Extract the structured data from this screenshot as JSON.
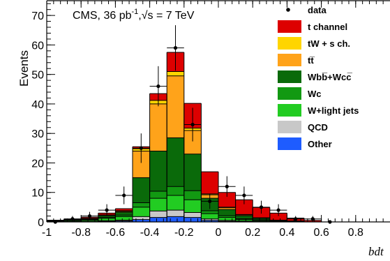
{
  "chart_data": {
    "type": "bar",
    "stacked": true,
    "title": "",
    "annotation": {
      "main": "CMS, 36 pb",
      "sup": "-1",
      "sep": ",",
      "sqrt_label": "√s = 7 TeV"
    },
    "ylabel": "Events",
    "xlabel": "bdt",
    "xlim": [
      -1,
      1
    ],
    "ylim": [
      0,
      75
    ],
    "x_ticks": [
      -1,
      -0.8,
      -0.6,
      -0.4,
      -0.2,
      0,
      0.2,
      0.4,
      0.6,
      0.8
    ],
    "x_tick_labels": [
      "-1",
      "-0.8",
      "-0.6",
      "-0.4",
      "-0.2",
      "0",
      "0.2",
      "0.4",
      "0.6",
      "0.8"
    ],
    "y_ticks": [
      0,
      10,
      20,
      30,
      40,
      50,
      60,
      70
    ],
    "y_tick_labels": [
      "0",
      "10",
      "20",
      "30",
      "40",
      "50",
      "60",
      "70"
    ],
    "bin_edges": [
      -1.0,
      -0.9,
      -0.8,
      -0.7,
      -0.6,
      -0.5,
      -0.4,
      -0.3,
      -0.2,
      -0.1,
      0.0,
      0.1,
      0.2,
      0.3,
      0.4,
      0.5,
      0.6,
      0.7,
      0.8,
      0.9,
      1.0
    ],
    "series": [
      {
        "name": "Other",
        "color": "#1e5cff",
        "values": [
          0.1,
          0.1,
          0.1,
          0.2,
          0.3,
          0.8,
          1.5,
          1.8,
          1.5,
          0.5,
          0.2,
          0.1,
          0.1,
          0.0,
          0.0,
          0.0,
          0.0,
          0.0,
          0.0,
          0.0
        ]
      },
      {
        "name": "QCD",
        "color": "#c8c8c8",
        "values": [
          0.0,
          0.0,
          0.0,
          0.2,
          0.3,
          1.0,
          2.2,
          2.2,
          1.7,
          0.5,
          0.3,
          0.2,
          0.1,
          0.0,
          0.0,
          0.0,
          0.0,
          0.0,
          0.0,
          0.0
        ]
      },
      {
        "name": "W+light jets",
        "color": "#22cc22",
        "values": [
          0.2,
          0.3,
          0.4,
          0.8,
          1.2,
          3.2,
          4.3,
          5.0,
          4.3,
          1.8,
          1.0,
          0.5,
          0.3,
          0.2,
          0.1,
          0.0,
          0.0,
          0.0,
          0.0,
          0.0
        ]
      },
      {
        "name": "Wc",
        "color": "#129912",
        "values": [
          0.1,
          0.1,
          0.2,
          0.3,
          0.5,
          1.5,
          2.4,
          3.0,
          3.1,
          1.0,
          0.6,
          0.3,
          0.2,
          0.1,
          0.1,
          0.0,
          0.0,
          0.0,
          0.0,
          0.0
        ]
      },
      {
        "name": "Wbb̅+Wcc̅",
        "color": "#0a6a0a",
        "values": [
          0.1,
          0.2,
          0.3,
          0.6,
          1.0,
          8.5,
          13.6,
          16.5,
          12.4,
          4.2,
          2.1,
          1.0,
          0.5,
          0.2,
          0.1,
          0.0,
          0.0,
          0.0,
          0.0,
          0.0
        ]
      },
      {
        "name": "tt̅",
        "color": "#ffa31a",
        "values": [
          0.0,
          0.1,
          0.1,
          0.2,
          0.3,
          9.0,
          16.0,
          21.0,
          8.0,
          1.2,
          0.6,
          0.3,
          0.2,
          0.1,
          0.0,
          0.0,
          0.0,
          0.0,
          0.0,
          0.0
        ]
      },
      {
        "name": "tW + s ch.",
        "color": "#ffd500",
        "values": [
          0.0,
          0.0,
          0.1,
          0.1,
          0.2,
          0.8,
          1.2,
          1.5,
          0.8,
          0.3,
          0.2,
          0.1,
          0.0,
          0.0,
          0.0,
          0.0,
          0.0,
          0.0,
          0.0,
          0.0
        ]
      },
      {
        "name": "t channel",
        "color": "#dd0000",
        "values": [
          0.1,
          0.2,
          0.4,
          0.6,
          0.7,
          0.7,
          2.3,
          6.5,
          8.4,
          7.5,
          5.0,
          5.0,
          3.5,
          2.4,
          1.0,
          0.5,
          0.0,
          0.0,
          0.0,
          0.0
        ]
      }
    ],
    "data": {
      "name": "data",
      "x": [
        -0.95,
        -0.85,
        -0.75,
        -0.65,
        -0.55,
        -0.45,
        -0.35,
        -0.25,
        -0.15,
        -0.05,
        0.05,
        0.15,
        0.25,
        0.35,
        0.45,
        0.55,
        0.65
      ],
      "y": [
        0,
        1,
        2,
        4,
        9,
        25,
        46,
        59,
        33,
        7,
        12,
        9,
        5,
        4,
        1,
        1,
        0
      ],
      "err": [
        0,
        1,
        1.4,
        2,
        3,
        5,
        6.8,
        7.7,
        5.7,
        2.6,
        3.5,
        3,
        2.2,
        2,
        1,
        1,
        0
      ]
    },
    "legend_order": [
      "data",
      "t channel",
      "tW + s ch.",
      "tt̅",
      "Wbb̅+Wcc̅",
      "Wc",
      "W+light jets",
      "QCD",
      "Other"
    ],
    "legend_position": "top-right",
    "grid": false
  }
}
